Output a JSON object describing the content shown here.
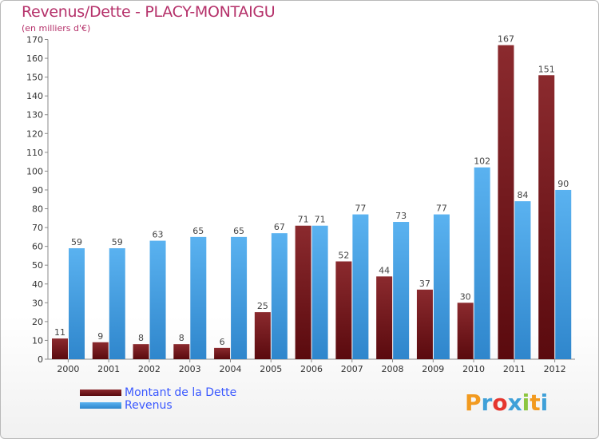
{
  "chart_data": {
    "type": "bar",
    "title": "Revenus/Dette - PLACY-MONTAIGU",
    "subtitle": "(en milliers d'€)",
    "categories": [
      "2000",
      "2001",
      "2002",
      "2003",
      "2004",
      "2005",
      "2006",
      "2007",
      "2008",
      "2009",
      "2010",
      "2011",
      "2012"
    ],
    "series": [
      {
        "name": "Montant de la Dette",
        "color": "#7a1a1e",
        "values": [
          11,
          9,
          8,
          8,
          6,
          25,
          71,
          52,
          44,
          37,
          30,
          167,
          151
        ]
      },
      {
        "name": "Revenus",
        "color": "#4ea6e8",
        "values": [
          59,
          59,
          63,
          65,
          65,
          67,
          71,
          77,
          73,
          77,
          102,
          84,
          90
        ]
      }
    ],
    "ylim": [
      0,
      170
    ],
    "yticks": [
      0,
      10,
      20,
      30,
      40,
      50,
      60,
      70,
      80,
      90,
      100,
      110,
      120,
      130,
      140,
      150,
      160,
      170
    ],
    "grid": false,
    "legend_position": "bottom-left"
  },
  "logo": {
    "text": "Proxiti",
    "letters": [
      "P",
      "r",
      "o",
      "x",
      "i",
      "t",
      "i"
    ],
    "colors": [
      "#f29a1f",
      "#3fa0d8",
      "#e5362e",
      "#3fa0d8",
      "#8cc63f",
      "#f29a1f",
      "#3fa0d8"
    ]
  }
}
